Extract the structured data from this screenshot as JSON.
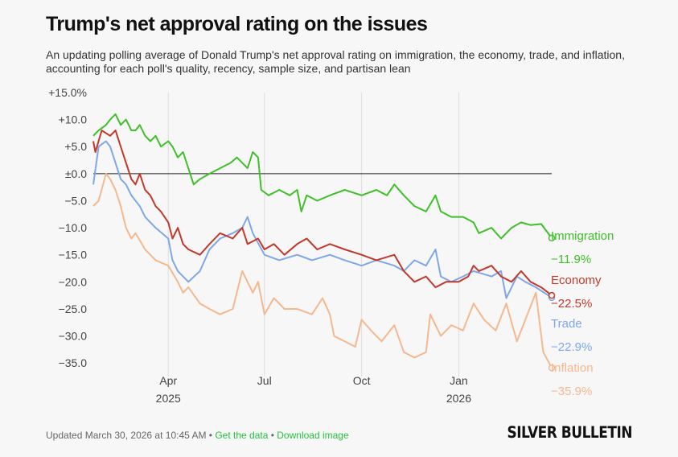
{
  "header": {
    "title": "Trump's net approval rating on the issues",
    "subtitle": "An updating polling average of Donald Trump's net approval rating on immigration, the economy, trade, and inflation, accounting for each poll's quality, recency, sample size, and partisan lean"
  },
  "footer": {
    "updated": "Updated March 30, 2026 at 10:45 AM",
    "sep1": " • ",
    "get_data": "Get the data",
    "sep2": " • ",
    "download": "Download image",
    "brand": "SILVER BULLETIN"
  },
  "chart_data": {
    "type": "line",
    "ylim": [
      -37.5,
      15
    ],
    "y_ticks": [
      15,
      10,
      5,
      0,
      -5,
      -10,
      -15,
      -20,
      -25,
      -30,
      -35
    ],
    "y_tick_labels": [
      "+15.0%",
      "+10.0",
      "+5.0",
      "±0.0",
      "−5.0",
      "−10.0",
      "−15.0",
      "−20.0",
      "−25.0",
      "−30.0",
      "−35.0"
    ],
    "x_range": [
      "2025-01-20",
      "2026-03-30"
    ],
    "x_ticks": [
      {
        "date": "2025-04-01",
        "label": "Apr",
        "sublabel": "2025"
      },
      {
        "date": "2025-07-01",
        "label": "Jul",
        "sublabel": ""
      },
      {
        "date": "2025-10-01",
        "label": "Oct",
        "sublabel": ""
      },
      {
        "date": "2026-01-01",
        "label": "Jan",
        "sublabel": "2026"
      }
    ],
    "grid": "vertical",
    "zero_line": true,
    "series": [
      {
        "name": "Immigration",
        "color": "#3fbf2a",
        "end_label": "−11.9%",
        "points": [
          [
            "2025-01-20",
            7
          ],
          [
            "2025-01-25",
            8
          ],
          [
            "2025-02-01",
            9
          ],
          [
            "2025-02-05",
            10
          ],
          [
            "2025-02-10",
            11
          ],
          [
            "2025-02-15",
            9
          ],
          [
            "2025-02-20",
            10
          ],
          [
            "2025-02-25",
            8
          ],
          [
            "2025-03-01",
            8
          ],
          [
            "2025-03-05",
            9
          ],
          [
            "2025-03-10",
            7
          ],
          [
            "2025-03-15",
            6
          ],
          [
            "2025-03-20",
            7
          ],
          [
            "2025-03-25",
            5
          ],
          [
            "2025-04-01",
            6
          ],
          [
            "2025-04-05",
            5
          ],
          [
            "2025-04-10",
            3
          ],
          [
            "2025-04-15",
            4
          ],
          [
            "2025-04-20",
            1
          ],
          [
            "2025-04-25",
            -2
          ],
          [
            "2025-05-01",
            -1
          ],
          [
            "2025-05-10",
            0
          ],
          [
            "2025-05-20",
            1
          ],
          [
            "2025-05-30",
            2
          ],
          [
            "2025-06-05",
            3
          ],
          [
            "2025-06-10",
            2
          ],
          [
            "2025-06-15",
            1
          ],
          [
            "2025-06-20",
            4
          ],
          [
            "2025-06-25",
            3
          ],
          [
            "2025-06-28",
            -3
          ],
          [
            "2025-07-05",
            -4
          ],
          [
            "2025-07-15",
            -3
          ],
          [
            "2025-07-25",
            -4
          ],
          [
            "2025-08-01",
            -3
          ],
          [
            "2025-08-05",
            -7
          ],
          [
            "2025-08-10",
            -4
          ],
          [
            "2025-08-20",
            -5
          ],
          [
            "2025-09-01",
            -4
          ],
          [
            "2025-09-15",
            -3
          ],
          [
            "2025-10-01",
            -4
          ],
          [
            "2025-10-15",
            -3
          ],
          [
            "2025-10-25",
            -4
          ],
          [
            "2025-11-01",
            -2
          ],
          [
            "2025-11-10",
            -4
          ],
          [
            "2025-11-20",
            -6
          ],
          [
            "2025-12-01",
            -7
          ],
          [
            "2025-12-10",
            -4
          ],
          [
            "2025-12-15",
            -7
          ],
          [
            "2025-12-25",
            -8
          ],
          [
            "2026-01-05",
            -8
          ],
          [
            "2026-01-15",
            -9
          ],
          [
            "2026-01-20",
            -11
          ],
          [
            "2026-02-01",
            -10
          ],
          [
            "2026-02-10",
            -12
          ],
          [
            "2026-02-20",
            -10
          ],
          [
            "2026-03-01",
            -9
          ],
          [
            "2026-03-10",
            -9.5
          ],
          [
            "2026-03-20",
            -9.3
          ],
          [
            "2026-03-30",
            -11.9
          ]
        ]
      },
      {
        "name": "Economy",
        "color": "#c0392b",
        "end_label": "−22.5%",
        "points": [
          [
            "2025-01-20",
            6
          ],
          [
            "2025-01-22",
            4
          ],
          [
            "2025-01-28",
            8
          ],
          [
            "2025-02-05",
            7
          ],
          [
            "2025-02-10",
            8
          ],
          [
            "2025-02-15",
            5
          ],
          [
            "2025-02-20",
            2
          ],
          [
            "2025-02-25",
            -1
          ],
          [
            "2025-03-01",
            -2
          ],
          [
            "2025-03-05",
            0
          ],
          [
            "2025-03-10",
            -3
          ],
          [
            "2025-03-15",
            -4
          ],
          [
            "2025-03-20",
            -6
          ],
          [
            "2025-03-25",
            -7
          ],
          [
            "2025-04-01",
            -9
          ],
          [
            "2025-04-05",
            -12
          ],
          [
            "2025-04-10",
            -10
          ],
          [
            "2025-04-15",
            -13
          ],
          [
            "2025-04-20",
            -14
          ],
          [
            "2025-05-01",
            -15
          ],
          [
            "2025-05-10",
            -13
          ],
          [
            "2025-05-20",
            -11
          ],
          [
            "2025-06-01",
            -12
          ],
          [
            "2025-06-10",
            -10
          ],
          [
            "2025-06-15",
            -13
          ],
          [
            "2025-06-25",
            -12
          ],
          [
            "2025-07-01",
            -14
          ],
          [
            "2025-07-10",
            -13
          ],
          [
            "2025-07-20",
            -15
          ],
          [
            "2025-08-01",
            -13
          ],
          [
            "2025-08-10",
            -12
          ],
          [
            "2025-08-20",
            -14
          ],
          [
            "2025-09-01",
            -13
          ],
          [
            "2025-09-15",
            -14
          ],
          [
            "2025-10-01",
            -15
          ],
          [
            "2025-10-15",
            -16
          ],
          [
            "2025-11-01",
            -15
          ],
          [
            "2025-11-10",
            -18
          ],
          [
            "2025-11-20",
            -20
          ],
          [
            "2025-12-01",
            -19
          ],
          [
            "2025-12-10",
            -21
          ],
          [
            "2025-12-20",
            -20
          ],
          [
            "2026-01-01",
            -20
          ],
          [
            "2026-01-10",
            -19
          ],
          [
            "2026-01-15",
            -17
          ],
          [
            "2026-01-20",
            -18
          ],
          [
            "2026-02-01",
            -17
          ],
          [
            "2026-02-10",
            -19
          ],
          [
            "2026-02-20",
            -20
          ],
          [
            "2026-03-01",
            -18
          ],
          [
            "2026-03-10",
            -20
          ],
          [
            "2026-03-20",
            -21
          ],
          [
            "2026-03-30",
            -22.5
          ]
        ]
      },
      {
        "name": "Trade",
        "color": "#7fa7e8",
        "end_label": "−22.9%",
        "points": [
          [
            "2025-01-20",
            -2
          ],
          [
            "2025-01-25",
            5
          ],
          [
            "2025-02-01",
            6
          ],
          [
            "2025-02-05",
            5
          ],
          [
            "2025-02-10",
            2
          ],
          [
            "2025-02-15",
            -1
          ],
          [
            "2025-02-20",
            -2
          ],
          [
            "2025-02-25",
            -4
          ],
          [
            "2025-03-01",
            -5
          ],
          [
            "2025-03-05",
            -6
          ],
          [
            "2025-03-10",
            -8
          ],
          [
            "2025-03-15",
            -9
          ],
          [
            "2025-03-20",
            -10
          ],
          [
            "2025-04-01",
            -12
          ],
          [
            "2025-04-05",
            -16
          ],
          [
            "2025-04-10",
            -18
          ],
          [
            "2025-04-20",
            -20
          ],
          [
            "2025-05-01",
            -18
          ],
          [
            "2025-05-10",
            -14
          ],
          [
            "2025-05-20",
            -12
          ],
          [
            "2025-06-01",
            -11
          ],
          [
            "2025-06-10",
            -10
          ],
          [
            "2025-06-15",
            -8
          ],
          [
            "2025-06-20",
            -11
          ],
          [
            "2025-07-01",
            -15
          ],
          [
            "2025-07-15",
            -16
          ],
          [
            "2025-08-01",
            -15
          ],
          [
            "2025-08-15",
            -16
          ],
          [
            "2025-09-01",
            -15
          ],
          [
            "2025-09-15",
            -16
          ],
          [
            "2025-10-01",
            -17
          ],
          [
            "2025-10-15",
            -16
          ],
          [
            "2025-11-01",
            -17
          ],
          [
            "2025-11-10",
            -18
          ],
          [
            "2025-11-20",
            -16
          ],
          [
            "2025-12-01",
            -17
          ],
          [
            "2025-12-10",
            -14
          ],
          [
            "2025-12-15",
            -19
          ],
          [
            "2025-12-25",
            -20
          ],
          [
            "2026-01-05",
            -19
          ],
          [
            "2026-01-15",
            -18
          ],
          [
            "2026-02-01",
            -19
          ],
          [
            "2026-02-10",
            -18
          ],
          [
            "2026-02-15",
            -23
          ],
          [
            "2026-02-25",
            -19
          ],
          [
            "2026-03-05",
            -20
          ],
          [
            "2026-03-15",
            -21
          ],
          [
            "2026-03-30",
            -22.9
          ]
        ]
      },
      {
        "name": "Inflation",
        "color": "#f5b88e",
        "end_label": "−35.9%",
        "points": [
          [
            "2025-01-20",
            -6
          ],
          [
            "2025-01-25",
            -5
          ],
          [
            "2025-02-01",
            0
          ],
          [
            "2025-02-05",
            -1
          ],
          [
            "2025-02-10",
            -3
          ],
          [
            "2025-02-15",
            -6
          ],
          [
            "2025-02-20",
            -10
          ],
          [
            "2025-02-25",
            -12
          ],
          [
            "2025-03-01",
            -11
          ],
          [
            "2025-03-10",
            -14
          ],
          [
            "2025-03-20",
            -16
          ],
          [
            "2025-04-01",
            -17
          ],
          [
            "2025-04-10",
            -20
          ],
          [
            "2025-04-15",
            -22
          ],
          [
            "2025-04-20",
            -21
          ],
          [
            "2025-05-01",
            -24
          ],
          [
            "2025-05-10",
            -25
          ],
          [
            "2025-05-20",
            -26
          ],
          [
            "2025-06-01",
            -25
          ],
          [
            "2025-06-10",
            -18
          ],
          [
            "2025-06-20",
            -22
          ],
          [
            "2025-06-25",
            -20
          ],
          [
            "2025-07-01",
            -26
          ],
          [
            "2025-07-10",
            -23
          ],
          [
            "2025-07-20",
            -25
          ],
          [
            "2025-08-01",
            -25
          ],
          [
            "2025-08-15",
            -26
          ],
          [
            "2025-08-25",
            -23
          ],
          [
            "2025-09-01",
            -26
          ],
          [
            "2025-09-05",
            -30
          ],
          [
            "2025-09-15",
            -31
          ],
          [
            "2025-09-25",
            -32
          ],
          [
            "2025-10-01",
            -27
          ],
          [
            "2025-10-10",
            -29
          ],
          [
            "2025-10-20",
            -31
          ],
          [
            "2025-11-01",
            -28
          ],
          [
            "2025-11-10",
            -33
          ],
          [
            "2025-11-20",
            -34
          ],
          [
            "2025-12-01",
            -33
          ],
          [
            "2025-12-05",
            -26
          ],
          [
            "2025-12-15",
            -30
          ],
          [
            "2025-12-25",
            -28
          ],
          [
            "2026-01-05",
            -29
          ],
          [
            "2026-01-15",
            -24
          ],
          [
            "2026-01-25",
            -27
          ],
          [
            "2026-02-05",
            -29
          ],
          [
            "2026-02-15",
            -24
          ],
          [
            "2026-02-25",
            -31
          ],
          [
            "2026-03-05",
            -27
          ],
          [
            "2026-03-15",
            -22
          ],
          [
            "2026-03-22",
            -33
          ],
          [
            "2026-03-30",
            -35.9
          ]
        ]
      }
    ]
  }
}
